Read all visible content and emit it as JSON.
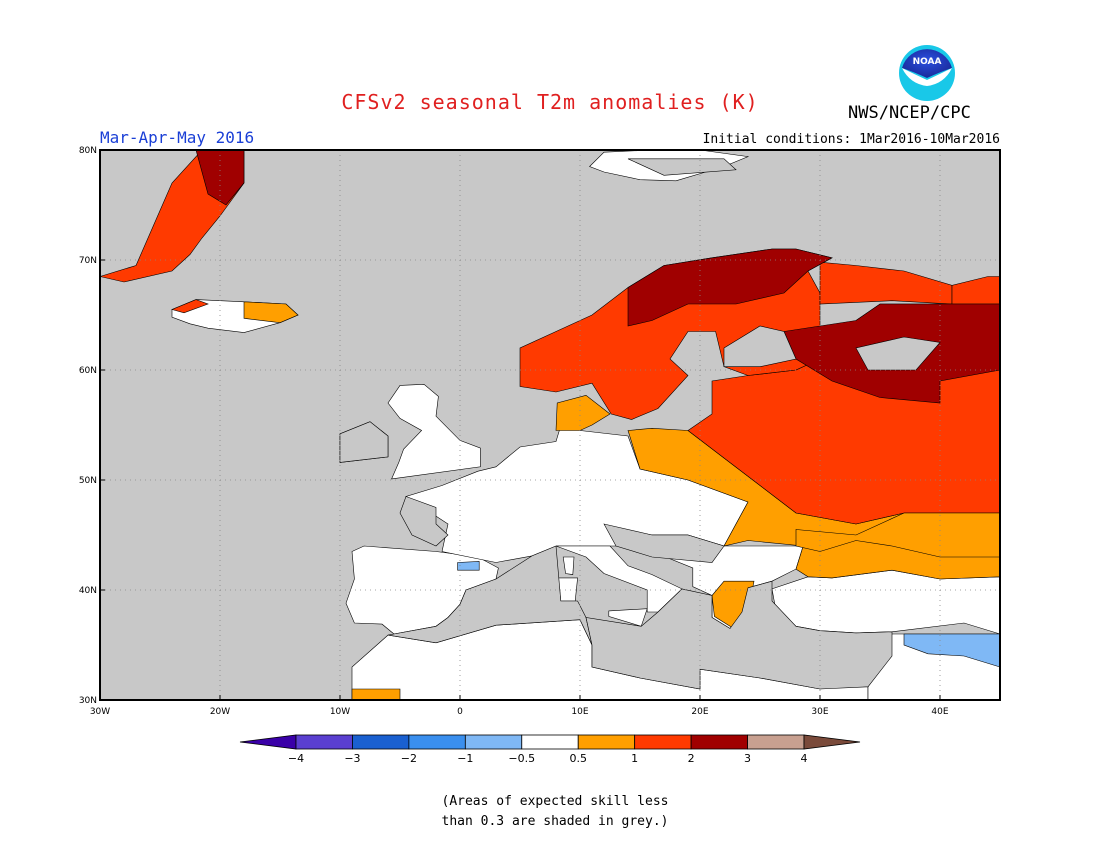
{
  "title": "CFSv2 seasonal T2m anomalies (K)",
  "season": "Mar-Apr-May 2016",
  "initial_conditions": "Initial conditions: 1Mar2016-10Mar2016",
  "org": "NWS/NCEP/CPC",
  "logo": {
    "icon": "noaa-logo-icon",
    "text": "NOAA"
  },
  "map": {
    "lon_range": [
      -30,
      45
    ],
    "lat_range": [
      30,
      80
    ],
    "lon_ticks": [
      {
        "value": -30,
        "label": "30W"
      },
      {
        "value": -20,
        "label": "20W"
      },
      {
        "value": -10,
        "label": "10W"
      },
      {
        "value": 0,
        "label": "0"
      },
      {
        "value": 10,
        "label": "10E"
      },
      {
        "value": 20,
        "label": "20E"
      },
      {
        "value": 30,
        "label": "30E"
      },
      {
        "value": 40,
        "label": "40E"
      }
    ],
    "lat_ticks": [
      {
        "value": 30,
        "label": "30N"
      },
      {
        "value": 40,
        "label": "40N"
      },
      {
        "value": 50,
        "label": "50N"
      },
      {
        "value": 60,
        "label": "60N"
      },
      {
        "value": 70,
        "label": "70N"
      },
      {
        "value": 80,
        "label": "80N"
      }
    ],
    "colors": {
      "ocean": "#c8c8c8",
      "neutral_land": "#ffffff",
      "grey": "#c8c8c8",
      "p05_1": "#ff9f00",
      "p1_2": "#ff3a00",
      "p2_3": "#a00000",
      "m05_1": "#7fb8f5",
      "gridline": "#888888"
    }
  },
  "colorbar": {
    "colors": [
      "#3a00a8",
      "#5a3fd0",
      "#1a60d0",
      "#3a8fee",
      "#7fb8f5",
      "#ffffff",
      "#ff9f00",
      "#ff3a00",
      "#a00000",
      "#c8a090",
      "#7a4a3a"
    ],
    "labels": [
      "−4",
      "−3",
      "−2",
      "−1",
      "−0.5",
      "0.5",
      "1",
      "2",
      "3",
      "4"
    ]
  },
  "note": {
    "line1": "(Areas of expected skill less",
    "line2": "than 0.3 are shaded in grey.)"
  }
}
